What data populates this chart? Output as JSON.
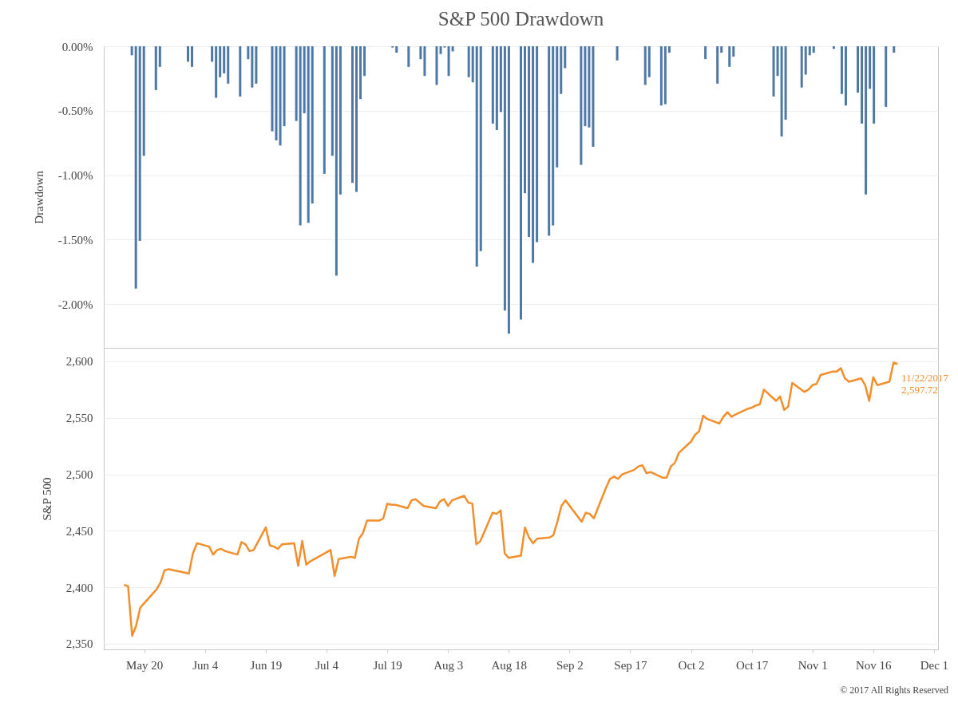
{
  "chart_data": [
    {
      "type": "bar",
      "title": "S&P 500 Drawdown",
      "ylabel": "Drawdown",
      "color": "#4e79a7",
      "xlim": [
        "2017-05-10",
        "2017-12-02"
      ],
      "ylim": [
        -2.34,
        0
      ],
      "grid": "y",
      "tick_labels": "y",
      "yticks": [
        {
          "value": -2,
          "label": "-2.00%"
        },
        {
          "value": -1.5,
          "label": "-1.50%"
        },
        {
          "value": -1,
          "label": "-1.00%"
        },
        {
          "value": -0.5,
          "label": "-0.50%"
        },
        {
          "value": 0,
          "label": "0.00%"
        }
      ],
      "x": [
        "2017-05-16",
        "2017-05-17",
        "2017-05-18",
        "2017-05-19",
        "2017-05-22",
        "2017-05-23",
        "2017-05-30",
        "2017-05-31",
        "2017-06-05",
        "2017-06-06",
        "2017-06-07",
        "2017-06-08",
        "2017-06-09",
        "2017-06-12",
        "2017-06-14",
        "2017-06-15",
        "2017-06-16",
        "2017-06-20",
        "2017-06-21",
        "2017-06-22",
        "2017-06-23",
        "2017-06-26",
        "2017-06-27",
        "2017-06-28",
        "2017-06-29",
        "2017-06-30",
        "2017-07-03",
        "2017-07-05",
        "2017-07-06",
        "2017-07-07",
        "2017-07-10",
        "2017-07-11",
        "2017-07-12",
        "2017-07-13",
        "2017-07-20",
        "2017-07-21",
        "2017-07-24",
        "2017-07-27",
        "2017-07-28",
        "2017-07-31",
        "2017-08-01",
        "2017-08-02",
        "2017-08-03",
        "2017-08-04",
        "2017-08-08",
        "2017-08-09",
        "2017-08-10",
        "2017-08-11",
        "2017-08-14",
        "2017-08-15",
        "2017-08-16",
        "2017-08-17",
        "2017-08-18",
        "2017-08-21",
        "2017-08-22",
        "2017-08-23",
        "2017-08-24",
        "2017-08-25",
        "2017-08-28",
        "2017-08-29",
        "2017-08-30",
        "2017-08-31",
        "2017-09-01",
        "2017-09-05",
        "2017-09-06",
        "2017-09-07",
        "2017-09-08",
        "2017-09-14",
        "2017-09-21",
        "2017-09-22",
        "2017-09-25",
        "2017-09-26",
        "2017-09-27",
        "2017-10-06",
        "2017-10-09",
        "2017-10-10",
        "2017-10-12",
        "2017-10-13",
        "2017-10-23",
        "2017-10-24",
        "2017-10-25",
        "2017-10-26",
        "2017-10-30",
        "2017-10-31",
        "2017-11-01",
        "2017-11-02",
        "2017-11-07",
        "2017-11-09",
        "2017-11-10",
        "2017-11-13",
        "2017-11-14",
        "2017-11-15",
        "2017-11-16",
        "2017-11-17",
        "2017-11-20",
        "2017-11-22"
      ],
      "values": [
        -0.07,
        -1.88,
        -1.51,
        -0.85,
        -0.34,
        -0.16,
        -0.12,
        -0.16,
        -0.12,
        -0.4,
        -0.24,
        -0.21,
        -0.29,
        -0.39,
        -0.1,
        -0.32,
        -0.29,
        -0.66,
        -0.73,
        -0.77,
        -0.62,
        -0.58,
        -1.39,
        -0.52,
        -1.37,
        -1.22,
        -0.99,
        -0.85,
        -1.78,
        -1.15,
        -1.06,
        -1.13,
        -0.41,
        -0.23,
        -0.01,
        -0.05,
        -0.16,
        -0.1,
        -0.23,
        -0.3,
        -0.06,
        -0.01,
        -0.23,
        -0.04,
        -0.24,
        -0.28,
        -1.71,
        -1.59,
        -0.6,
        -0.65,
        -0.51,
        -2.05,
        -2.23,
        -2.12,
        -1.14,
        -1.48,
        -1.68,
        -1.52,
        -1.47,
        -1.39,
        -0.94,
        -0.37,
        -0.17,
        -0.92,
        -0.62,
        -0.63,
        -0.78,
        -0.11,
        -0.3,
        -0.24,
        -0.46,
        -0.45,
        -0.05,
        -0.1,
        -0.29,
        -0.05,
        -0.16,
        -0.08,
        -0.39,
        -0.23,
        -0.7,
        -0.57,
        -0.32,
        -0.22,
        -0.07,
        -0.05,
        -0.02,
        -0.37,
        -0.46,
        -0.36,
        -0.6,
        -1.15,
        -0.33,
        -0.6,
        -0.47,
        -0.05
      ]
    },
    {
      "type": "line",
      "ylabel": "S&P 500",
      "color": "#f28e2b",
      "xlim": [
        "2017-05-10",
        "2017-12-02"
      ],
      "ylim": [
        2345,
        2612
      ],
      "grid": "y",
      "yticks": [
        {
          "value": 2350,
          "label": "2,350"
        },
        {
          "value": 2400,
          "label": "2,400"
        },
        {
          "value": 2450,
          "label": "2,450"
        },
        {
          "value": 2500,
          "label": "2,500"
        },
        {
          "value": 2550,
          "label": "2,550"
        },
        {
          "value": 2600,
          "label": "2,600"
        }
      ],
      "xticks": [
        {
          "value": "2017-05-20",
          "label": "May 20"
        },
        {
          "value": "2017-06-04",
          "label": "Jun 4"
        },
        {
          "value": "2017-06-19",
          "label": "Jun 19"
        },
        {
          "value": "2017-07-04",
          "label": "Jul 4"
        },
        {
          "value": "2017-07-19",
          "label": "Jul 19"
        },
        {
          "value": "2017-08-03",
          "label": "Aug 3"
        },
        {
          "value": "2017-08-18",
          "label": "Aug 18"
        },
        {
          "value": "2017-09-02",
          "label": "Sep 2"
        },
        {
          "value": "2017-09-17",
          "label": "Sep 17"
        },
        {
          "value": "2017-10-02",
          "label": "Oct 2"
        },
        {
          "value": "2017-10-17",
          "label": "Oct 17"
        },
        {
          "value": "2017-11-01",
          "label": "Nov 1"
        },
        {
          "value": "2017-11-16",
          "label": "Nov 16"
        },
        {
          "value": "2017-12-01",
          "label": "Dec 1"
        }
      ],
      "x": [
        "2017-05-15",
        "2017-05-16",
        "2017-05-17",
        "2017-05-18",
        "2017-05-19",
        "2017-05-22",
        "2017-05-23",
        "2017-05-24",
        "2017-05-25",
        "2017-05-26",
        "2017-05-30",
        "2017-05-31",
        "2017-06-01",
        "2017-06-02",
        "2017-06-05",
        "2017-06-06",
        "2017-06-07",
        "2017-06-08",
        "2017-06-09",
        "2017-06-12",
        "2017-06-13",
        "2017-06-14",
        "2017-06-15",
        "2017-06-16",
        "2017-06-19",
        "2017-06-20",
        "2017-06-21",
        "2017-06-22",
        "2017-06-23",
        "2017-06-26",
        "2017-06-27",
        "2017-06-28",
        "2017-06-29",
        "2017-06-30",
        "2017-07-03",
        "2017-07-05",
        "2017-07-06",
        "2017-07-07",
        "2017-07-10",
        "2017-07-11",
        "2017-07-12",
        "2017-07-13",
        "2017-07-14",
        "2017-07-17",
        "2017-07-18",
        "2017-07-19",
        "2017-07-20",
        "2017-07-21",
        "2017-07-24",
        "2017-07-25",
        "2017-07-26",
        "2017-07-27",
        "2017-07-28",
        "2017-07-31",
        "2017-08-01",
        "2017-08-02",
        "2017-08-03",
        "2017-08-04",
        "2017-08-07",
        "2017-08-08",
        "2017-08-09",
        "2017-08-10",
        "2017-08-11",
        "2017-08-14",
        "2017-08-15",
        "2017-08-16",
        "2017-08-17",
        "2017-08-18",
        "2017-08-21",
        "2017-08-22",
        "2017-08-23",
        "2017-08-24",
        "2017-08-25",
        "2017-08-28",
        "2017-08-29",
        "2017-08-30",
        "2017-08-31",
        "2017-09-01",
        "2017-09-05",
        "2017-09-06",
        "2017-09-07",
        "2017-09-08",
        "2017-09-11",
        "2017-09-12",
        "2017-09-13",
        "2017-09-14",
        "2017-09-15",
        "2017-09-18",
        "2017-09-19",
        "2017-09-20",
        "2017-09-21",
        "2017-09-22",
        "2017-09-25",
        "2017-09-26",
        "2017-09-27",
        "2017-09-28",
        "2017-09-29",
        "2017-10-02",
        "2017-10-03",
        "2017-10-04",
        "2017-10-05",
        "2017-10-06",
        "2017-10-09",
        "2017-10-10",
        "2017-10-11",
        "2017-10-12",
        "2017-10-13",
        "2017-10-16",
        "2017-10-17",
        "2017-10-18",
        "2017-10-19",
        "2017-10-20",
        "2017-10-23",
        "2017-10-24",
        "2017-10-25",
        "2017-10-26",
        "2017-10-27",
        "2017-10-30",
        "2017-10-31",
        "2017-11-01",
        "2017-11-02",
        "2017-11-03",
        "2017-11-06",
        "2017-11-07",
        "2017-11-08",
        "2017-11-09",
        "2017-11-10",
        "2017-11-13",
        "2017-11-14",
        "2017-11-15",
        "2017-11-16",
        "2017-11-17",
        "2017-11-20",
        "2017-11-21",
        "2017-11-22"
      ],
      "values": [
        2402,
        2401,
        2357,
        2366,
        2382,
        2394,
        2398,
        2404,
        2415,
        2416,
        2413,
        2412,
        2430,
        2439,
        2436,
        2429,
        2433,
        2434,
        2432,
        2429,
        2440,
        2438,
        2432,
        2433,
        2453,
        2437,
        2436,
        2434,
        2438,
        2439,
        2419,
        2441,
        2420,
        2423,
        2429,
        2433,
        2410,
        2425,
        2427,
        2426,
        2443,
        2448,
        2459,
        2459,
        2461,
        2474,
        2473,
        2473,
        2470,
        2477,
        2478,
        2475,
        2472,
        2470,
        2476,
        2478,
        2472,
        2477,
        2481,
        2475,
        2474,
        2438,
        2441,
        2466,
        2465,
        2468,
        2430,
        2426,
        2428,
        2453,
        2444,
        2439,
        2443,
        2444,
        2446,
        2458,
        2472,
        2477,
        2458,
        2466,
        2465,
        2461,
        2488,
        2496,
        2498,
        2496,
        2500,
        2504,
        2507,
        2508,
        2501,
        2502,
        2497,
        2497,
        2507,
        2510,
        2519,
        2529,
        2535,
        2538,
        2552,
        2549,
        2545,
        2551,
        2555,
        2551,
        2553,
        2558,
        2559,
        2561,
        2562,
        2575,
        2565,
        2569,
        2557,
        2560,
        2581,
        2573,
        2575,
        2579,
        2580,
        2588,
        2591,
        2591,
        2594,
        2585,
        2582,
        2585,
        2579,
        2565,
        2586,
        2579,
        2582,
        2599,
        2597.72
      ],
      "annotations": [
        {
          "text": "11/22/2017\n2,597.72",
          "x": "2017-11-22",
          "y": 2597.72
        },
        "© 2017 All Rights Reserved"
      ]
    }
  ]
}
